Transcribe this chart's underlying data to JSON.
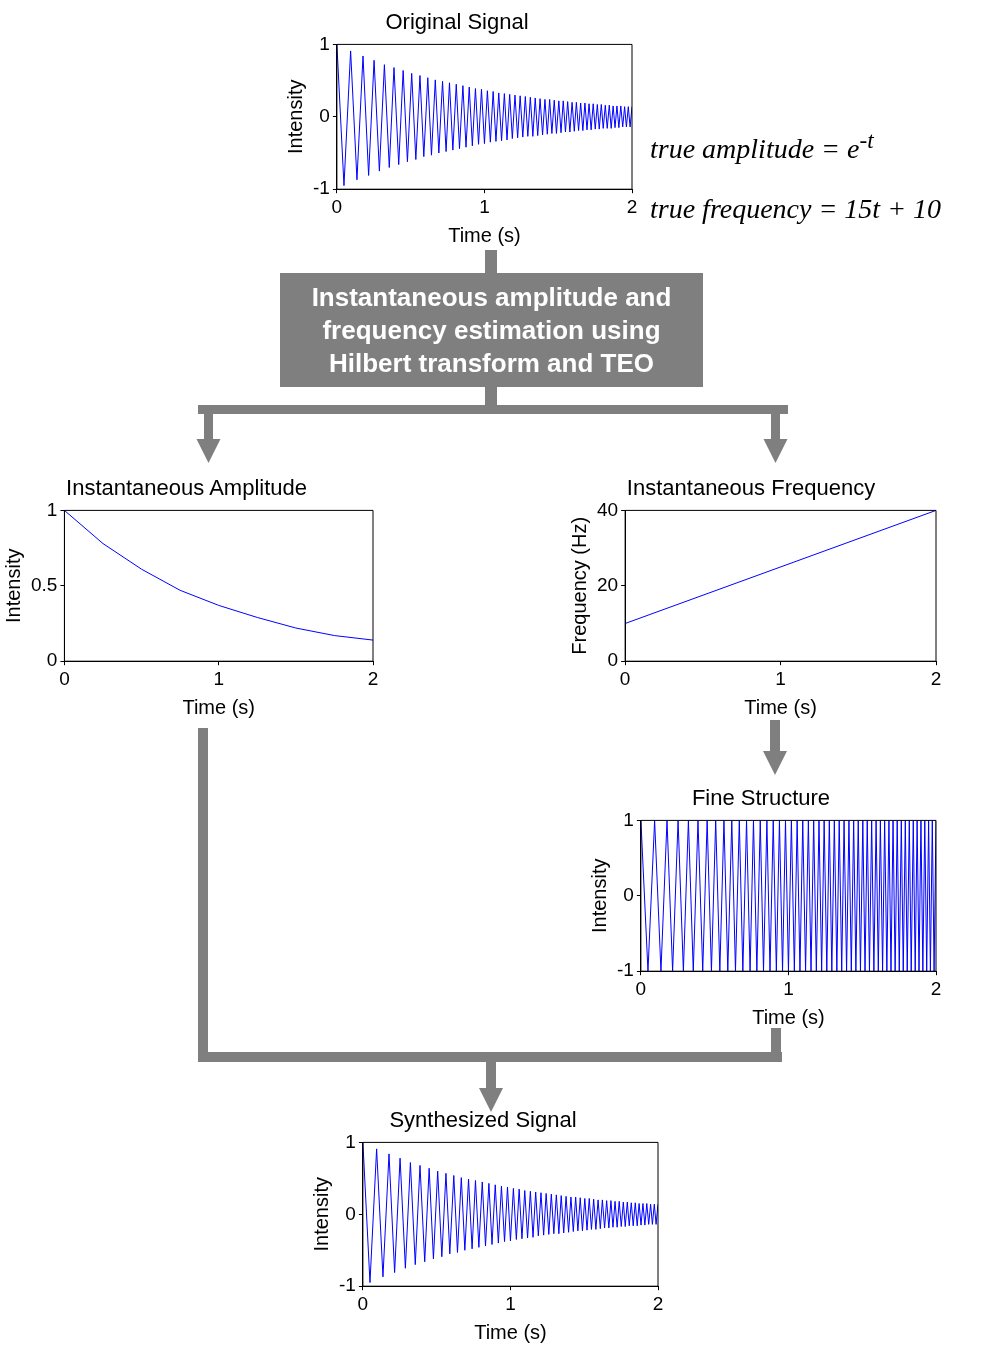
{
  "chart_data": [
    {
      "type": "line",
      "title": "Original Signal",
      "xlabel": "Time (s)",
      "ylabel": "Intensity",
      "xlim": [
        0,
        2
      ],
      "xticks": [
        0,
        1,
        2
      ],
      "ylim": [
        -1,
        1
      ],
      "yticks": [
        -1,
        0,
        1
      ],
      "annotations": [
        "true amplitude = e$^{-t}$",
        "true frequency = 15t + 10"
      ],
      "series": [
        {
          "color": "#0000ff",
          "x": [
            0,
            0.048,
            0.093,
            0.136,
            0.177,
            0.215,
            0.252,
            0.288,
            0.322,
            0.355,
            0.387,
            0.419,
            0.449,
            0.478,
            0.507,
            0.535,
            0.563,
            0.589,
            0.616,
            0.641,
            0.667,
            0.691,
            0.716,
            0.74,
            0.763,
            0.786,
            0.809,
            0.831,
            0.854,
            0.875,
            0.897,
            0.918,
            0.939,
            0.96,
            0.98,
            1,
            1.02,
            1.04,
            1.059,
            1.078,
            1.097,
            1.116,
            1.135,
            1.153,
            1.171,
            1.189,
            1.207,
            1.225,
            1.242,
            1.26,
            1.277,
            1.294,
            1.311,
            1.328,
            1.344,
            1.361,
            1.377,
            1.394,
            1.41,
            1.426,
            1.442,
            1.457,
            1.473,
            1.488,
            1.504,
            1.519,
            1.534,
            1.549,
            1.564,
            1.579,
            1.594,
            1.609,
            1.623,
            1.638,
            1.652,
            1.667,
            1.681,
            1.695,
            1.709,
            1.723,
            1.737,
            1.751,
            1.765,
            1.778,
            1.792,
            1.805,
            1.819,
            1.832,
            1.846,
            1.859,
            1.872,
            1.885,
            1.898,
            1.911,
            1.924,
            1.937,
            1.95,
            1.962,
            1.975,
            1.987,
            2
          ],
          "values": [
            1,
            -0.95,
            0.91,
            -0.87,
            0.84,
            -0.81,
            0.78,
            -0.75,
            0.72,
            -0.7,
            0.68,
            -0.66,
            0.64,
            -0.62,
            0.6,
            -0.59,
            0.57,
            -0.55,
            0.54,
            -0.53,
            0.51,
            -0.5,
            0.49,
            -0.48,
            0.47,
            -0.46,
            0.45,
            -0.44,
            0.43,
            -0.42,
            0.41,
            -0.4,
            0.39,
            -0.38,
            0.38,
            -0.37,
            0.36,
            -0.35,
            0.35,
            -0.34,
            0.33,
            -0.33,
            0.32,
            -0.32,
            0.31,
            -0.3,
            0.3,
            -0.29,
            0.29,
            -0.28,
            0.28,
            -0.27,
            0.27,
            -0.27,
            0.26,
            -0.26,
            0.25,
            -0.25,
            0.24,
            -0.24,
            0.24,
            -0.23,
            0.23,
            -0.23,
            0.22,
            -0.22,
            0.22,
            -0.21,
            0.21,
            -0.21,
            0.2,
            -0.2,
            0.2,
            -0.19,
            0.19,
            -0.19,
            0.19,
            -0.18,
            0.18,
            -0.18,
            0.18,
            -0.17,
            0.17,
            -0.17,
            0.17,
            -0.16,
            0.16,
            -0.16,
            0.16,
            -0.16,
            0.15,
            -0.15,
            0.15,
            -0.15,
            0.15,
            -0.14,
            0.14,
            -0.14,
            0.14,
            -0.14,
            0.14
          ]
        }
      ]
    },
    {
      "type": "other",
      "annotations": [
        "Instantaneous amplitude and frequency estimation using Hilbert transform and TEO"
      ]
    },
    {
      "type": "line",
      "title": "Instantaneous Amplitude",
      "xlabel": "Time (s)",
      "ylabel": "Intensity",
      "xlim": [
        0,
        2
      ],
      "xticks": [
        0,
        1,
        2
      ],
      "ylim": [
        0,
        1
      ],
      "yticks": [
        0,
        0.5,
        1
      ],
      "series": [
        {
          "color": "#0000ff",
          "x": [
            0,
            0.25,
            0.5,
            0.75,
            1,
            1.25,
            1.5,
            1.75,
            2
          ],
          "values": [
            1,
            0.78,
            0.61,
            0.47,
            0.37,
            0.29,
            0.22,
            0.17,
            0.14
          ]
        }
      ]
    },
    {
      "type": "line",
      "title": "Instantaneous Frequency",
      "xlabel": "Time (s)",
      "ylabel": "Frequency (Hz)",
      "xlim": [
        0,
        2
      ],
      "xticks": [
        0,
        1,
        2
      ],
      "ylim": [
        0,
        40
      ],
      "yticks": [
        0,
        20,
        40
      ],
      "series": [
        {
          "color": "#0000ff",
          "x": [
            0,
            2
          ],
          "values": [
            10,
            40
          ]
        }
      ]
    },
    {
      "type": "line",
      "title": "Fine Structure",
      "xlabel": "Time (s)",
      "ylabel": "Intensity",
      "xlim": [
        0,
        2
      ],
      "xticks": [
        0,
        1,
        2
      ],
      "ylim": [
        -1,
        1
      ],
      "yticks": [
        -1,
        0,
        1
      ],
      "series": [
        {
          "color": "#0000ff",
          "x": [
            0,
            0.048,
            0.093,
            0.136,
            0.177,
            0.215,
            0.252,
            0.288,
            0.322,
            0.355,
            0.387,
            0.419,
            0.449,
            0.478,
            0.507,
            0.535,
            0.563,
            0.589,
            0.616,
            0.641,
            0.667,
            0.691,
            0.716,
            0.74,
            0.763,
            0.786,
            0.809,
            0.831,
            0.854,
            0.875,
            0.897,
            0.918,
            0.939,
            0.96,
            0.98,
            1,
            1.02,
            1.04,
            1.059,
            1.078,
            1.097,
            1.116,
            1.135,
            1.153,
            1.171,
            1.189,
            1.207,
            1.225,
            1.242,
            1.26,
            1.277,
            1.294,
            1.311,
            1.328,
            1.344,
            1.361,
            1.377,
            1.394,
            1.41,
            1.426,
            1.442,
            1.457,
            1.473,
            1.488,
            1.504,
            1.519,
            1.534,
            1.549,
            1.564,
            1.579,
            1.594,
            1.609,
            1.623,
            1.638,
            1.652,
            1.667,
            1.681,
            1.695,
            1.709,
            1.723,
            1.737,
            1.751,
            1.765,
            1.778,
            1.792,
            1.805,
            1.819,
            1.832,
            1.846,
            1.859,
            1.872,
            1.885,
            1.898,
            1.911,
            1.924,
            1.937,
            1.95,
            1.962,
            1.975,
            1.987,
            2
          ],
          "values": [
            1,
            -1,
            1,
            -1,
            1,
            -1,
            1,
            -1,
            1,
            -1,
            1,
            -1,
            1,
            -1,
            1,
            -1,
            1,
            -1,
            1,
            -1,
            1,
            -1,
            1,
            -1,
            1,
            -1,
            1,
            -1,
            1,
            -1,
            1,
            -1,
            1,
            -1,
            1,
            -1,
            1,
            -1,
            1,
            -1,
            1,
            -1,
            1,
            -1,
            1,
            -1,
            1,
            -1,
            1,
            -1,
            1,
            -1,
            1,
            -1,
            1,
            -1,
            1,
            -1,
            1,
            -1,
            1,
            -1,
            1,
            -1,
            1,
            -1,
            1,
            -1,
            1,
            -1,
            1,
            -1,
            1,
            -1,
            1,
            -1,
            1,
            -1,
            1,
            -1,
            1,
            -1,
            1,
            -1,
            1,
            -1,
            1,
            -1,
            1,
            -1,
            1,
            -1,
            1,
            -1,
            1,
            -1,
            1,
            -1,
            1,
            -1,
            1
          ]
        }
      ]
    },
    {
      "type": "line",
      "title": "Synthesized Signal",
      "xlabel": "Time (s)",
      "ylabel": "Intensity",
      "xlim": [
        0,
        2
      ],
      "xticks": [
        0,
        1,
        2
      ],
      "ylim": [
        -1,
        1
      ],
      "yticks": [
        -1,
        0,
        1
      ],
      "series": [
        {
          "color": "#0000ff",
          "x": [
            0,
            0.048,
            0.093,
            0.136,
            0.177,
            0.215,
            0.252,
            0.288,
            0.322,
            0.355,
            0.387,
            0.419,
            0.449,
            0.478,
            0.507,
            0.535,
            0.563,
            0.589,
            0.616,
            0.641,
            0.667,
            0.691,
            0.716,
            0.74,
            0.763,
            0.786,
            0.809,
            0.831,
            0.854,
            0.875,
            0.897,
            0.918,
            0.939,
            0.96,
            0.98,
            1,
            1.02,
            1.04,
            1.059,
            1.078,
            1.097,
            1.116,
            1.135,
            1.153,
            1.171,
            1.189,
            1.207,
            1.225,
            1.242,
            1.26,
            1.277,
            1.294,
            1.311,
            1.328,
            1.344,
            1.361,
            1.377,
            1.394,
            1.41,
            1.426,
            1.442,
            1.457,
            1.473,
            1.488,
            1.504,
            1.519,
            1.534,
            1.549,
            1.564,
            1.579,
            1.594,
            1.609,
            1.623,
            1.638,
            1.652,
            1.667,
            1.681,
            1.695,
            1.709,
            1.723,
            1.737,
            1.751,
            1.765,
            1.778,
            1.792,
            1.805,
            1.819,
            1.832,
            1.846,
            1.859,
            1.872,
            1.885,
            1.898,
            1.911,
            1.924,
            1.937,
            1.95,
            1.962,
            1.975,
            1.987,
            2
          ],
          "values": [
            1,
            -0.95,
            0.91,
            -0.87,
            0.84,
            -0.81,
            0.78,
            -0.75,
            0.72,
            -0.7,
            0.68,
            -0.66,
            0.64,
            -0.62,
            0.6,
            -0.59,
            0.57,
            -0.55,
            0.54,
            -0.53,
            0.51,
            -0.5,
            0.49,
            -0.48,
            0.47,
            -0.46,
            0.45,
            -0.44,
            0.43,
            -0.42,
            0.41,
            -0.4,
            0.39,
            -0.38,
            0.38,
            -0.37,
            0.36,
            -0.35,
            0.35,
            -0.34,
            0.33,
            -0.33,
            0.32,
            -0.32,
            0.31,
            -0.3,
            0.3,
            -0.29,
            0.29,
            -0.28,
            0.28,
            -0.27,
            0.27,
            -0.27,
            0.26,
            -0.26,
            0.25,
            -0.25,
            0.24,
            -0.24,
            0.24,
            -0.23,
            0.23,
            -0.23,
            0.22,
            -0.22,
            0.22,
            -0.21,
            0.21,
            -0.21,
            0.2,
            -0.2,
            0.2,
            -0.19,
            0.19,
            -0.19,
            0.19,
            -0.18,
            0.18,
            -0.18,
            0.18,
            -0.17,
            0.17,
            -0.17,
            0.17,
            -0.16,
            0.16,
            -0.16,
            0.16,
            -0.16,
            0.15,
            -0.15,
            0.15,
            -0.15,
            0.15,
            -0.14,
            0.14,
            -0.14,
            0.14,
            -0.14,
            0.14
          ]
        }
      ]
    }
  ]
}
